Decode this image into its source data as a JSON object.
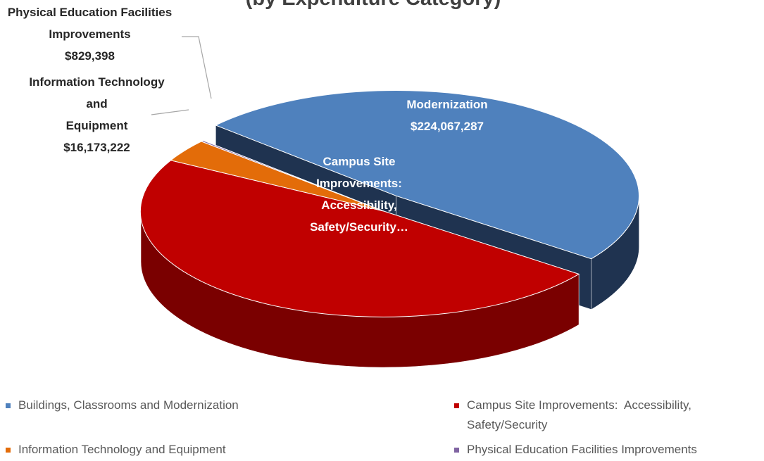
{
  "chart_data": {
    "type": "pie",
    "title": "(by Expenditure Category)",
    "categories": [
      "Buildings, Classrooms and Modernization",
      "Campus Site Improvements:  Accessibility, Safety/Security",
      "Information Technology and Equipment",
      "Physical Education Facilities Improvements"
    ],
    "label_names": [
      "Buildings, Classrooms and Modernization",
      "Campus Site Improvements: Accessibility, Safety/Security…",
      "Information Technology and",
      "Physical Education Facilities Improvements"
    ],
    "label_second_lines": [
      null,
      null,
      "Equipment",
      null
    ],
    "values": [
      224067287,
      221000000,
      16173222,
      829398
    ],
    "value_labels": [
      "$224,067,287",
      null,
      "$16,173,222",
      "$829,398"
    ],
    "colors": [
      "#4f81bd",
      "#c00000",
      "#e36c09",
      "#8064a2"
    ],
    "side_colors": [
      "#1f3350",
      "#7a0000",
      "#9a4a06",
      "#574570"
    ],
    "exploded": [
      true,
      false,
      false,
      false
    ],
    "legend": "bottom"
  }
}
